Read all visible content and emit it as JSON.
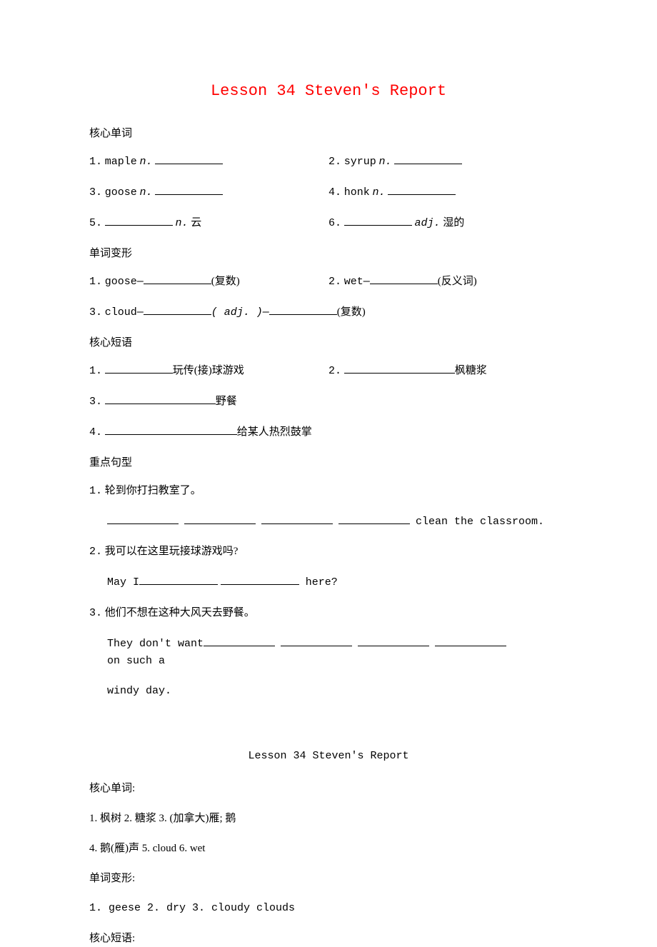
{
  "title": "Lesson 34  Steven's Report",
  "sections": {
    "vocab_header": "核心单词",
    "vocab": [
      {
        "num": "1.",
        "word": "maple",
        "pos": "n.",
        "blank_after": true
      },
      {
        "num": "2.",
        "word": "syrup",
        "pos": "n.",
        "blank_after": true
      },
      {
        "num": "3.",
        "word": "goose",
        "pos": "n.",
        "blank_after": true
      },
      {
        "num": "4.",
        "word": "honk",
        "pos": "n.",
        "blank_after": true
      },
      {
        "num": "5.",
        "blank_before": true,
        "pos": "n.",
        "cn": "云"
      },
      {
        "num": "6.",
        "blank_before": true,
        "pos": "adj.",
        "cn": "湿的"
      }
    ],
    "forms_header": "单词变形",
    "forms": {
      "item1": {
        "num": "1.",
        "word": "goose—",
        "note": "(复数)"
      },
      "item2": {
        "num": "2.",
        "word": "wet—",
        "note": "(反义词)"
      },
      "item3": {
        "num": "3.",
        "word": "cloud—",
        "mid": "( adj. )—",
        "note": "(复数)"
      }
    },
    "phrases_header": "核心短语",
    "phrases": {
      "p1": {
        "num": "1.",
        "cn": "玩传(接)球游戏"
      },
      "p2": {
        "num": "2.",
        "cn": "枫糖浆"
      },
      "p3": {
        "num": "3.",
        "cn": "野餐"
      },
      "p4": {
        "num": "4.",
        "cn": "给某人热烈鼓掌"
      }
    },
    "sentences_header": "重点句型",
    "sentences": {
      "s1": {
        "num": "1.",
        "cn": "轮到你打扫教室了。",
        "tail": " clean the classroom."
      },
      "s2": {
        "num": "2.",
        "cn": "我可以在这里玩接球游戏吗?",
        "lead": "May I",
        "tail": " here?"
      },
      "s3": {
        "num": "3.",
        "cn": "他们不想在这种大风天去野餐。",
        "lead": "They don't want ",
        "tail": " on such a",
        "tail2": "windy day."
      }
    }
  },
  "answers": {
    "title": "Lesson 34  Steven's Report",
    "vocab_header": "核心单词:",
    "vocab_line1": "1. 枫树  2. 糖浆  3. (加拿大)雁; 鹅",
    "vocab_line2": "4. 鹅(雁)声  5. cloud  6. wet",
    "forms_header": "单词变形:",
    "forms_line": "1. geese  2. dry  3. cloudy  clouds",
    "phrases_header": "核心短语:"
  },
  "colors": {
    "title": "#ff0000",
    "text": "#000000",
    "background": "#ffffff"
  },
  "fonts": {
    "title_family": "Courier New",
    "body_family": "SimSun",
    "title_size": 22,
    "body_size": 15
  }
}
